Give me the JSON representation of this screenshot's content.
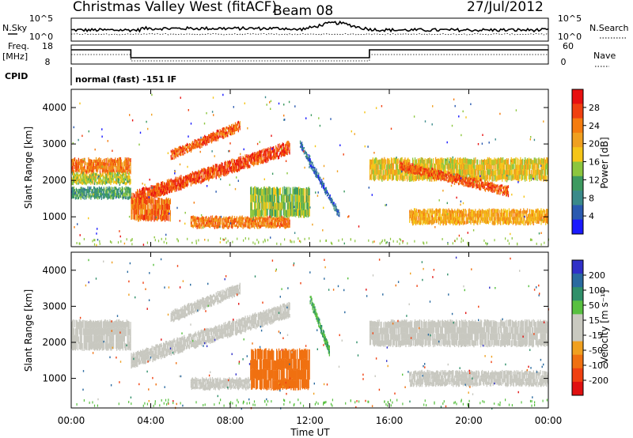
{
  "header": {
    "station": "Christmas Valley West (fitACF)",
    "beam": "Beam 08",
    "date": "27/Jul/2012"
  },
  "top_panels": {
    "nsky_label": "N.Sky",
    "nsky_ticks": [
      "10^5",
      "10^0"
    ],
    "nsearch_label": "N.Search",
    "nsearch_ticks": [
      "10^5",
      "10^0"
    ],
    "freq_label": "Freq.",
    "freq_unit": "[MHz]",
    "freq_ticks": [
      "18",
      "8"
    ],
    "nave_label": "Nave",
    "nave_ticks": [
      "60",
      "0"
    ],
    "cpid_label": "CPID",
    "cpid_text": "normal (fast) -151 IF"
  },
  "colors": {
    "power_scale": [
      "#1a1aff",
      "#2a5ab0",
      "#3a8a8a",
      "#3d9a60",
      "#8cc63e",
      "#f5c518",
      "#f0a020",
      "#f57c0f",
      "#f04010",
      "#e81010"
    ],
    "velocity_scale": [
      "#3030c8",
      "#2a6aa0",
      "#30906a",
      "#58c040",
      "#c9c9c0",
      "#c9c9c0",
      "#f0a020",
      "#f07010",
      "#f04010",
      "#e01010"
    ],
    "gray": "#c8c8c0"
  },
  "chart_data": [
    {
      "type": "heatmap",
      "name": "power",
      "ylabel": "Slant Range [km]",
      "xlabel": "Time UT",
      "x_ticks": [
        "00:00",
        "04:00",
        "08:00",
        "12:00",
        "16:00",
        "20:00",
        "00:00"
      ],
      "x_range_hours": [
        0,
        24
      ],
      "y_ticks": [
        1000,
        2000,
        3000,
        4000
      ],
      "y_range_km": [
        180,
        4500
      ],
      "colorbar_label": "Power [dB]",
      "colorbar_ticks": [
        "4",
        "8",
        "12",
        "16",
        "20",
        "24",
        "28"
      ],
      "colorbar_range": [
        0,
        32
      ],
      "bands": [
        {
          "t0": 0.0,
          "t1": 3.0,
          "r0": 2200,
          "r1": 2600,
          "level": 24
        },
        {
          "t0": 0.0,
          "t1": 3.0,
          "r0": 1900,
          "r1": 2200,
          "level": 16
        },
        {
          "t0": 0.0,
          "t1": 3.0,
          "r0": 1500,
          "r1": 1800,
          "level": 10
        },
        {
          "t0": 3.0,
          "t1": 11.0,
          "r0a": 1500,
          "r0b": 2900,
          "width": 350,
          "level": 27
        },
        {
          "t0": 3.0,
          "t1": 5.0,
          "r0": 900,
          "r1": 1500,
          "level": 25
        },
        {
          "t0": 5.0,
          "t1": 8.5,
          "r0a": 2700,
          "r0b": 3500,
          "width": 250,
          "level": 26
        },
        {
          "t0": 6.0,
          "t1": 11.0,
          "r0": 700,
          "r1": 1000,
          "level": 24
        },
        {
          "t0": 9.0,
          "t1": 12.0,
          "r0": 1000,
          "r1": 1800,
          "level": 14
        },
        {
          "t0": 11.5,
          "t1": 13.5,
          "r0a": 3000,
          "r0b": 1000,
          "width": 200,
          "level": 6
        },
        {
          "t0": 15.0,
          "t1": 24.0,
          "r0": 2000,
          "r1": 2600,
          "level": 18
        },
        {
          "t0": 16.5,
          "t1": 22.0,
          "r0a": 2400,
          "r0b": 1700,
          "width": 250,
          "level": 26
        },
        {
          "t0": 17.0,
          "t1": 24.0,
          "r0": 800,
          "r1": 1200,
          "level": 20
        }
      ]
    },
    {
      "type": "heatmap",
      "name": "velocity",
      "ylabel": "Slant Range [km]",
      "xlabel": "Time UT",
      "x_ticks": [
        "00:00",
        "04:00",
        "08:00",
        "12:00",
        "16:00",
        "20:00",
        "00:00"
      ],
      "x_range_hours": [
        0,
        24
      ],
      "y_ticks": [
        1000,
        2000,
        3000,
        4000
      ],
      "y_range_km": [
        180,
        4500
      ],
      "colorbar_label": "Velocity [m s⁻¹]",
      "colorbar_ticks": [
        "200",
        "100",
        "50",
        "15",
        "-15",
        "-50",
        "-100",
        "-200"
      ],
      "colorbar_range": [
        -250,
        250
      ],
      "bands": [
        {
          "t0": 0.0,
          "t1": 3.0,
          "r0": 1800,
          "r1": 2600,
          "level": 0
        },
        {
          "t0": 3.0,
          "t1": 11.0,
          "r0a": 1500,
          "r0b": 2900,
          "width": 400,
          "level": 0
        },
        {
          "t0": 5.0,
          "t1": 8.5,
          "r0a": 2700,
          "r0b": 3500,
          "width": 300,
          "level": 0
        },
        {
          "t0": 6.0,
          "t1": 9.0,
          "r0": 700,
          "r1": 1000,
          "level": 0
        },
        {
          "t0": 9.0,
          "t1": 12.0,
          "r0": 700,
          "r1": 1800,
          "level": -60
        },
        {
          "t0": 12.0,
          "t1": 13.0,
          "r0a": 3200,
          "r0b": 1700,
          "width": 250,
          "level": 50
        },
        {
          "t0": 15.0,
          "t1": 24.0,
          "r0": 1900,
          "r1": 2600,
          "level": 0
        },
        {
          "t0": 17.0,
          "t1": 24.0,
          "r0": 800,
          "r1": 1200,
          "level": 0
        }
      ]
    }
  ]
}
